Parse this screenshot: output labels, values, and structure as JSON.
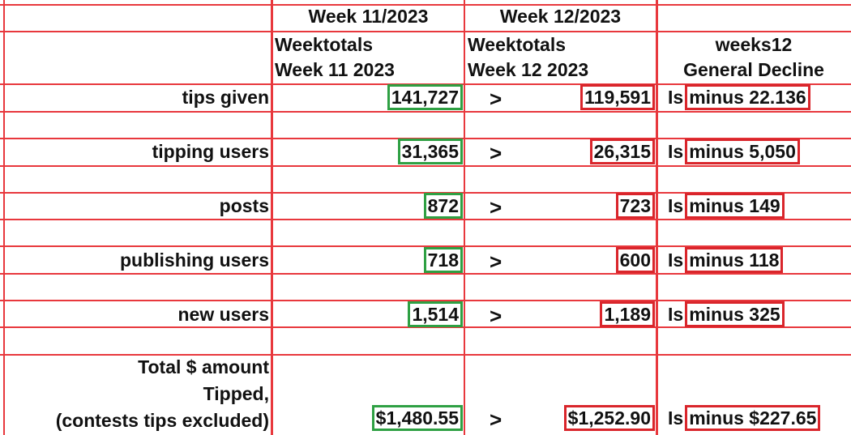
{
  "header": {
    "week11": "Week 11/2023",
    "week12": "Week 12/2023"
  },
  "subheader": {
    "week11": [
      "Weektotals",
      "Week 11 2023"
    ],
    "week12": [
      "Weektotals",
      "Week 12 2023"
    ],
    "decline": [
      "weeks12",
      "General Decline"
    ]
  },
  "rows": [
    {
      "label": [
        "tips given"
      ],
      "week11": "141,727",
      "comparator": ">",
      "week12": "119,591",
      "prefix": "Is",
      "decline": "minus 22.136"
    },
    {
      "label": [
        "tipping users"
      ],
      "week11": "31,365",
      "comparator": ">",
      "week12": "26,315",
      "prefix": "Is",
      "decline": "minus 5,050"
    },
    {
      "label": [
        "posts"
      ],
      "week11": "872",
      "comparator": ">",
      "week12": "723",
      "prefix": "Is",
      "decline": "minus 149"
    },
    {
      "label": [
        "publishing users"
      ],
      "week11": "718",
      "comparator": ">",
      "week12": "600",
      "prefix": "Is",
      "decline": "minus 118"
    },
    {
      "label": [
        "new users"
      ],
      "week11": "1,514",
      "comparator": ">",
      "week12": "1,189",
      "prefix": "Is",
      "decline": "minus 325"
    },
    {
      "label": [
        "Total $ amount",
        "Tipped,",
        "(contests tips excluded)"
      ],
      "week11": "$1,480.55",
      "comparator": ">",
      "week12": "$1,252.90",
      "prefix": "Is",
      "decline": "minus $227.65"
    }
  ]
}
